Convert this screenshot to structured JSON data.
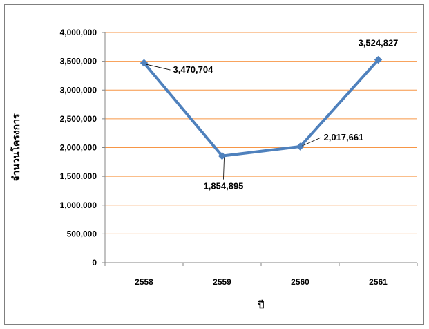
{
  "chart_data": {
    "type": "line",
    "title": "",
    "xlabel": "ปี",
    "ylabel": "จำนวนโครงการ",
    "categories": [
      "2558",
      "2559",
      "2560",
      "2561"
    ],
    "series": [
      {
        "values": [
          3470704,
          1854895,
          2017661,
          3524827
        ],
        "data_labels": [
          "3,470,704",
          "1,854,895",
          "2,017,661",
          "3,524,827"
        ],
        "color": "#4f81bd",
        "marker": "diamond"
      }
    ],
    "ylim": [
      0,
      4000000
    ],
    "yticks": [
      0,
      500000,
      1000000,
      1500000,
      2000000,
      2500000,
      3000000,
      3500000,
      4000000
    ],
    "ytick_labels": [
      "0",
      "500,000",
      "1,000,000",
      "1,500,000",
      "2,000,000",
      "2,500,000",
      "3,000,000",
      "3,500,000",
      "4,000,000"
    ],
    "grid": true,
    "grid_color": "#f79646",
    "legend": "none"
  }
}
